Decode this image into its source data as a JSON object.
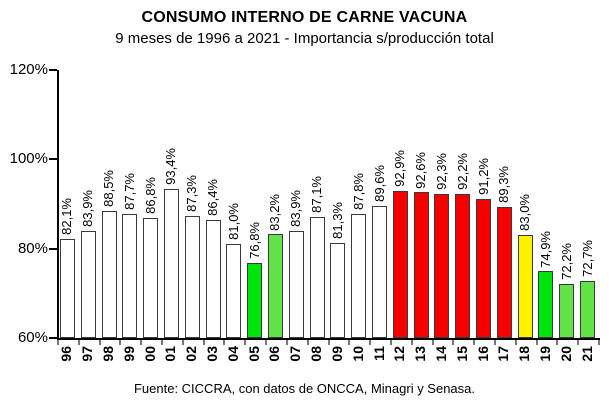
{
  "header": {
    "title": "CONSUMO INTERNO DE CARNE VACUNA",
    "subtitle": "9 meses de 1996 a 2021 - Importancia s/producción total"
  },
  "footer": {
    "source": "Fuente: CICCRA, con datos de ONCCA, Minagri y Senasa."
  },
  "colors": {
    "white": "#FFFFFF",
    "red": "#F60000",
    "yellow": "#FFF200",
    "green_bright": "#00E40E",
    "green_light": "#62E348",
    "bar_border": "#3A3A3A",
    "axis": "#000000",
    "minor_tick": "#777777"
  },
  "chart_data": {
    "type": "bar",
    "title": "CONSUMO INTERNO DE CARNE VACUNA",
    "subtitle": "9 meses de 1996 a 2021 - Importancia s/producción total",
    "source": "Fuente: CICCRA, con datos de ONCCA, Minagri y Senasa.",
    "categories": [
      "96",
      "97",
      "98",
      "99",
      "00",
      "01",
      "02",
      "03",
      "04",
      "05",
      "06",
      "07",
      "08",
      "09",
      "10",
      "11",
      "12",
      "13",
      "14",
      "15",
      "16",
      "17",
      "18",
      "19",
      "20",
      "21"
    ],
    "values": [
      82.1,
      83.9,
      88.5,
      87.7,
      86.8,
      93.4,
      87.3,
      86.4,
      81.0,
      76.8,
      83.2,
      83.9,
      87.1,
      81.3,
      87.8,
      89.6,
      92.9,
      92.6,
      92.3,
      92.2,
      91.2,
      89.3,
      83.0,
      74.9,
      72.2,
      72.7
    ],
    "data_labels": [
      "82,1%",
      "83,9%",
      "88,5%",
      "87,7%",
      "86,8%",
      "93,4%",
      "87,3%",
      "86,4%",
      "81,0%",
      "76,8%",
      "83,2%",
      "83,9%",
      "87,1%",
      "81,3%",
      "87,8%",
      "89,6%",
      "92,9%",
      "92,6%",
      "92,3%",
      "92,2%",
      "91,2%",
      "89,3%",
      "83,0%",
      "74,9%",
      "72,2%",
      "72,7%"
    ],
    "bar_colors": [
      "white",
      "white",
      "white",
      "white",
      "white",
      "white",
      "white",
      "white",
      "white",
      "green_bright",
      "green_light",
      "white",
      "white",
      "white",
      "white",
      "white",
      "red",
      "red",
      "red",
      "red",
      "red",
      "red",
      "yellow",
      "green_bright",
      "green_light",
      "green_light"
    ],
    "y_ticks": [
      {
        "label": "120%",
        "value": 120
      },
      {
        "label": "100%",
        "value": 100
      },
      {
        "label": "80%",
        "value": 80
      },
      {
        "label": "60%",
        "value": 60
      }
    ],
    "ylim": [
      60,
      120
    ],
    "xlabel": "",
    "ylabel": "",
    "grid": false,
    "legend": null
  }
}
